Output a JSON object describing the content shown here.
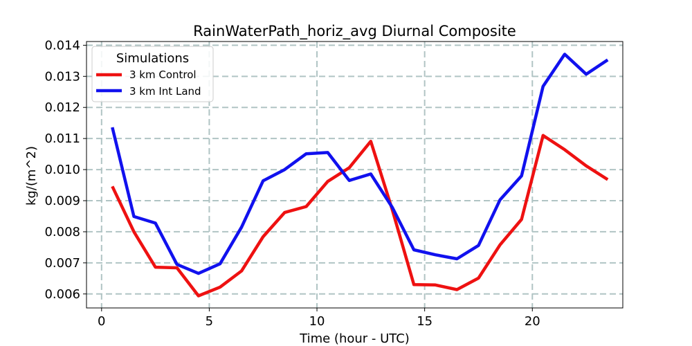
{
  "chart_data": {
    "type": "line",
    "title": "RainWaterPath_horiz_avg Diurnal Composite",
    "xlabel": "Time (hour - UTC)",
    "ylabel": "kg/(m^2)",
    "xlim": [
      -0.7,
      24.2
    ],
    "ylim": [
      0.00555,
      0.01412
    ],
    "xticks": [
      0,
      5,
      10,
      15,
      20
    ],
    "xtick_labels": [
      "0",
      "5",
      "10",
      "15",
      "20"
    ],
    "yticks": [
      0.006,
      0.007,
      0.008,
      0.009,
      0.01,
      0.011,
      0.012,
      0.013,
      0.014
    ],
    "ytick_labels": [
      "0.006",
      "0.007",
      "0.008",
      "0.009",
      "0.010",
      "0.011",
      "0.012",
      "0.013",
      "0.014"
    ],
    "grid": true,
    "legend": {
      "title": "Simulations",
      "position": "top-left"
    },
    "x": [
      0.5,
      1.5,
      2.5,
      3.5,
      4.5,
      5.5,
      6.5,
      7.5,
      8.5,
      9.5,
      10.5,
      11.5,
      12.5,
      13.5,
      14.5,
      15.5,
      16.5,
      17.5,
      18.5,
      19.5,
      20.5,
      21.5,
      22.5,
      23.5
    ],
    "series": [
      {
        "name": "3 km Control",
        "color": "#ee1111",
        "values": [
          0.00946,
          0.008,
          0.00686,
          0.00684,
          0.00594,
          0.00622,
          0.00674,
          0.00784,
          0.00862,
          0.00881,
          0.00962,
          0.01006,
          0.01091,
          0.0087,
          0.0063,
          0.00629,
          0.00614,
          0.00651,
          0.00758,
          0.0084,
          0.0111,
          0.01064,
          0.01012,
          0.00968
        ]
      },
      {
        "name": "3 km Int Land",
        "color": "#1111ee",
        "values": [
          0.01136,
          0.00849,
          0.00828,
          0.00695,
          0.00666,
          0.00697,
          0.00815,
          0.00964,
          0.01,
          0.01051,
          0.01055,
          0.00965,
          0.00986,
          0.00878,
          0.00742,
          0.00726,
          0.00713,
          0.00756,
          0.00903,
          0.0098,
          0.01268,
          0.01371,
          0.01307,
          0.01353
        ]
      }
    ]
  }
}
